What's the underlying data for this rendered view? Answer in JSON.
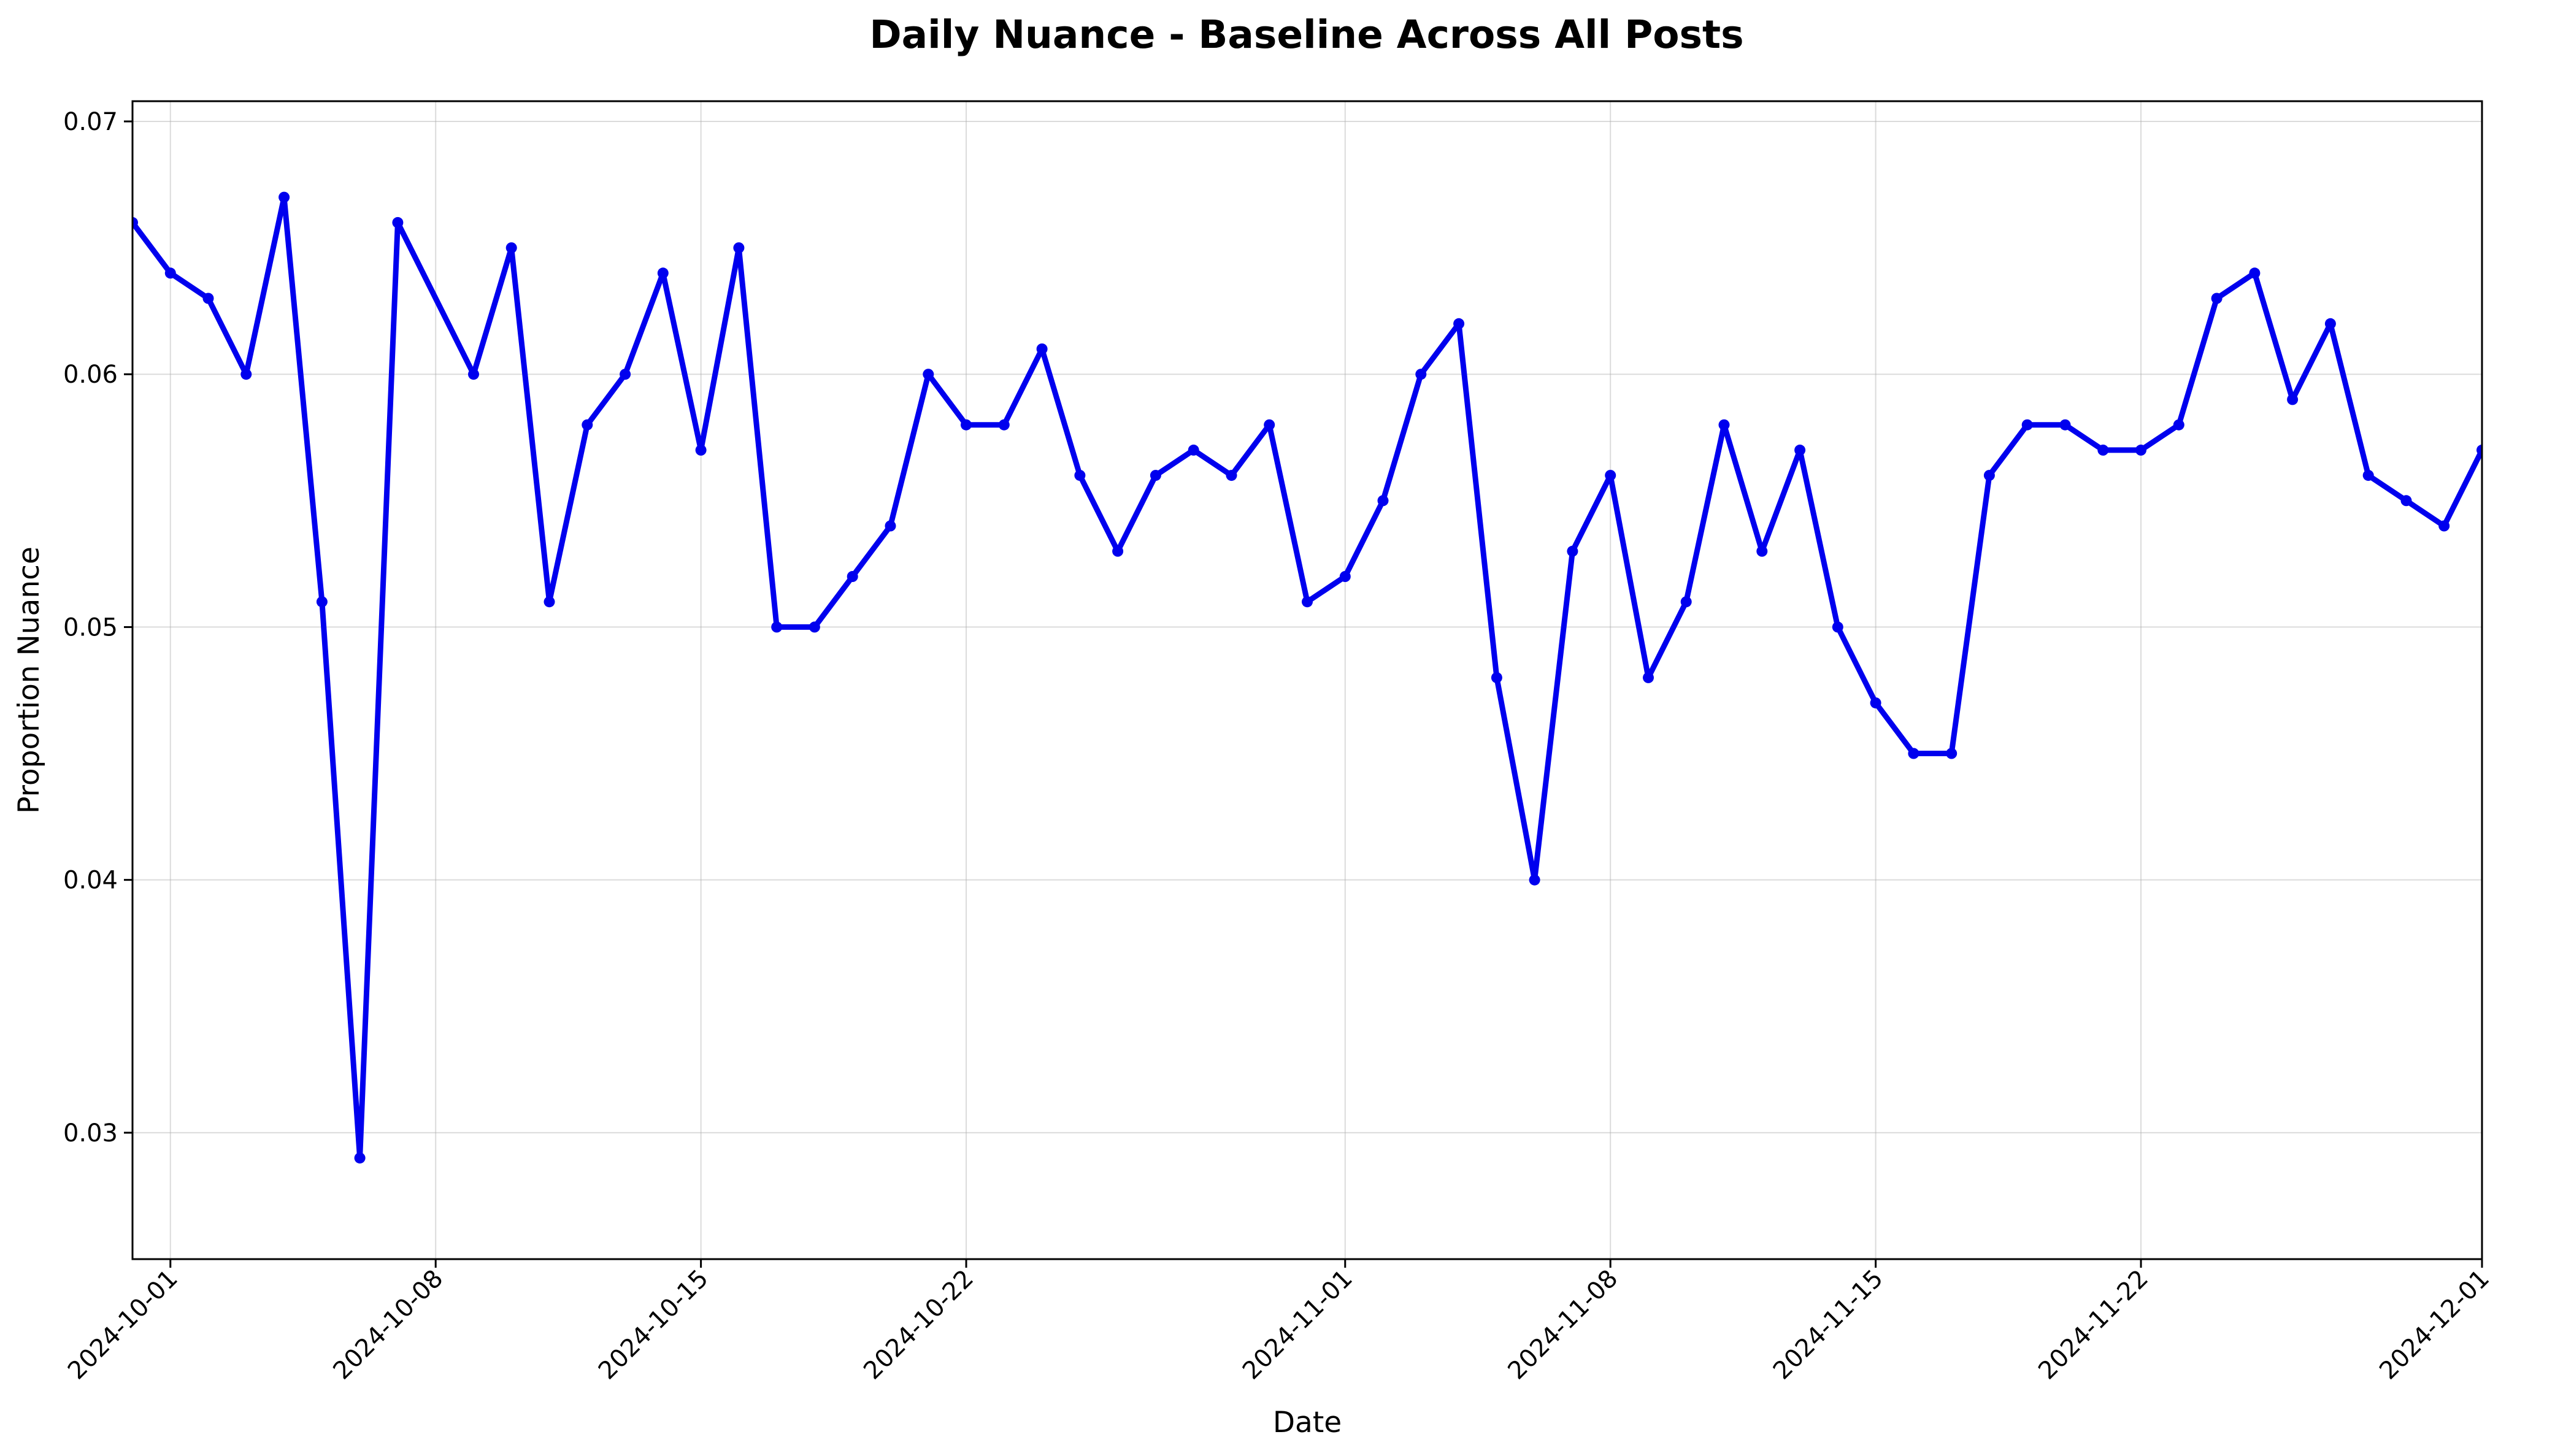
{
  "chart_data": {
    "type": "line",
    "title": "Daily Nuance - Baseline Across All Posts",
    "xlabel": "Date",
    "ylabel": "Proportion Nuance",
    "xlim": [
      "2024-09-30",
      "2024-12-01"
    ],
    "ylim": [
      0.025,
      0.0708
    ],
    "grid": true,
    "line_color": "#0000ee",
    "x_ticks": [
      "2024-10-01",
      "2024-10-08",
      "2024-10-15",
      "2024-10-22",
      "2024-11-01",
      "2024-11-08",
      "2024-11-15",
      "2024-11-22",
      "2024-12-01"
    ],
    "y_ticks": [
      "0.03",
      "0.04",
      "0.05",
      "0.06",
      "0.07"
    ],
    "series": [
      {
        "x": [
          "2024-09-30",
          "2024-10-01",
          "2024-10-02",
          "2024-10-03",
          "2024-10-04",
          "2024-10-05",
          "2024-10-06",
          "2024-10-07",
          "2024-10-09",
          "2024-10-10",
          "2024-10-11",
          "2024-10-12",
          "2024-10-13",
          "2024-10-14",
          "2024-10-15",
          "2024-10-16",
          "2024-10-17",
          "2024-10-18",
          "2024-10-19",
          "2024-10-20",
          "2024-10-21",
          "2024-10-22",
          "2024-10-23",
          "2024-10-24",
          "2024-10-25",
          "2024-10-26",
          "2024-10-27",
          "2024-10-28",
          "2024-10-29",
          "2024-10-30",
          "2024-10-31",
          "2024-11-01",
          "2024-11-02",
          "2024-11-03",
          "2024-11-04",
          "2024-11-05",
          "2024-11-06",
          "2024-11-07",
          "2024-11-08",
          "2024-11-09",
          "2024-11-10",
          "2024-11-11",
          "2024-11-12",
          "2024-11-13",
          "2024-11-14",
          "2024-11-15",
          "2024-11-16",
          "2024-11-17",
          "2024-11-18",
          "2024-11-19",
          "2024-11-20",
          "2024-11-21",
          "2024-11-22",
          "2024-11-23",
          "2024-11-24",
          "2024-11-25",
          "2024-11-26",
          "2024-11-27",
          "2024-11-28",
          "2024-11-29",
          "2024-11-30",
          "2024-12-01"
        ],
        "values": [
          0.066,
          0.064,
          0.063,
          0.06,
          0.067,
          0.051,
          0.029,
          0.066,
          0.06,
          0.065,
          0.051,
          0.058,
          0.06,
          0.064,
          0.057,
          0.065,
          0.05,
          0.05,
          0.052,
          0.054,
          0.06,
          0.058,
          0.058,
          0.061,
          0.056,
          0.053,
          0.056,
          0.057,
          0.056,
          0.058,
          0.051,
          0.052,
          0.055,
          0.06,
          0.062,
          0.048,
          0.04,
          0.053,
          0.056,
          0.048,
          0.051,
          0.058,
          0.053,
          0.057,
          0.05,
          0.047,
          0.045,
          0.045,
          0.056,
          0.058,
          0.058,
          0.057,
          0.057,
          0.058,
          0.063,
          0.064,
          0.059,
          0.062,
          0.056,
          0.055,
          0.054,
          0.057
        ]
      }
    ]
  }
}
